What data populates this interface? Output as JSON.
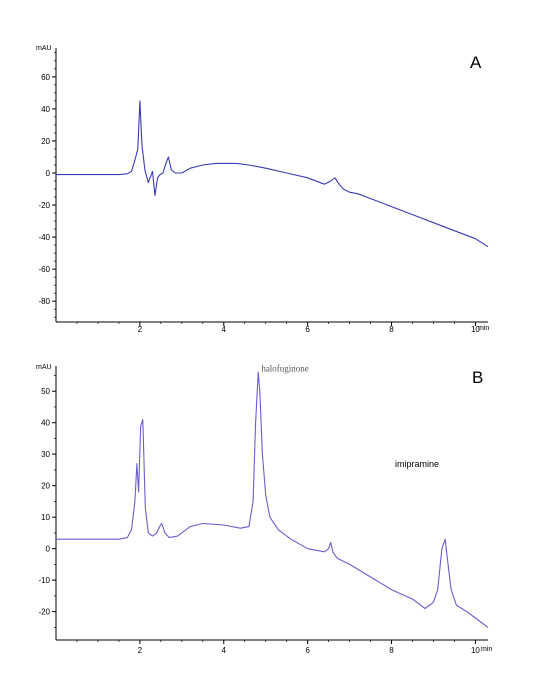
{
  "chart_data": [
    {
      "type": "line",
      "panel_label": "A",
      "ylabel": "mAU",
      "x_unit": "min",
      "xlim": [
        0,
        10.3
      ],
      "ylim": [
        -93,
        78
      ],
      "x_ticks": [
        2,
        4,
        6,
        8,
        10
      ],
      "y_ticks": [
        -80,
        -60,
        -40,
        -20,
        0,
        20,
        40,
        60
      ],
      "line_color": "#3b3bb5",
      "annotations": [],
      "series": [
        {
          "x": [
            0,
            0.5,
            1.0,
            1.5,
            1.7,
            1.8,
            1.88,
            1.95,
            2.0,
            2.05,
            2.12,
            2.2,
            2.3,
            2.36,
            2.42,
            2.48,
            2.55,
            2.62,
            2.68,
            2.75,
            2.85,
            3.0,
            3.2,
            3.5,
            3.8,
            4.0,
            4.3,
            4.6,
            5.0,
            5.5,
            6.0,
            6.4,
            6.55,
            6.65,
            6.75,
            6.85,
            7.0,
            7.2,
            7.5,
            8.0,
            8.5,
            9.0,
            9.5,
            10.0,
            10.3
          ],
          "y": [
            -1,
            -1,
            -1,
            -1,
            -0.5,
            1,
            8,
            15,
            45,
            17,
            2,
            -6,
            1,
            -14,
            -3,
            -1,
            0,
            6,
            10,
            2,
            0,
            0,
            3,
            5,
            6,
            6,
            6,
            5,
            3,
            0,
            -3,
            -7,
            -5,
            -3,
            -7,
            -10,
            -12,
            -13,
            -16,
            -21,
            -26,
            -31,
            -36,
            -41,
            -46
          ]
        }
      ]
    },
    {
      "type": "line",
      "panel_label": "B",
      "ylabel": "mAU",
      "x_unit": "min",
      "xlim": [
        0,
        10.3
      ],
      "ylim": [
        -29,
        58
      ],
      "x_ticks": [
        2,
        4,
        6,
        8,
        10
      ],
      "y_ticks": [
        -20,
        -10,
        0,
        10,
        20,
        30,
        40,
        50
      ],
      "line_color": "#6a5fcc",
      "annotations": [
        {
          "text": "halofuginone",
          "x": 4.8,
          "y": 54
        },
        {
          "text": "imipramine",
          "x": 9.3,
          "y": 17
        }
      ],
      "series": [
        {
          "x": [
            0,
            0.5,
            1.0,
            1.5,
            1.7,
            1.8,
            1.88,
            1.93,
            1.97,
            2.02,
            2.07,
            2.13,
            2.2,
            2.3,
            2.4,
            2.47,
            2.52,
            2.6,
            2.7,
            2.9,
            3.2,
            3.5,
            4.0,
            4.4,
            4.6,
            4.7,
            4.76,
            4.82,
            4.86,
            4.92,
            5.0,
            5.1,
            5.3,
            5.6,
            6.0,
            6.4,
            6.5,
            6.55,
            6.6,
            6.7,
            7.0,
            7.5,
            8.0,
            8.5,
            8.8,
            9.0,
            9.1,
            9.2,
            9.28,
            9.34,
            9.42,
            9.55,
            9.8,
            10.0,
            10.3
          ],
          "y": [
            3,
            3,
            3,
            3,
            3.5,
            6,
            15,
            27,
            18,
            39,
            41,
            13,
            5,
            4,
            5,
            7,
            8,
            5,
            3.5,
            4,
            7,
            8,
            7.5,
            6.5,
            7,
            15,
            40,
            56,
            50,
            30,
            17,
            10,
            6,
            3,
            0,
            -1,
            0,
            2,
            -1,
            -3,
            -5,
            -9,
            -13,
            -16,
            -19,
            -17,
            -13,
            0,
            3,
            -4,
            -13,
            -18,
            -20,
            -22,
            -25
          ]
        }
      ]
    }
  ]
}
